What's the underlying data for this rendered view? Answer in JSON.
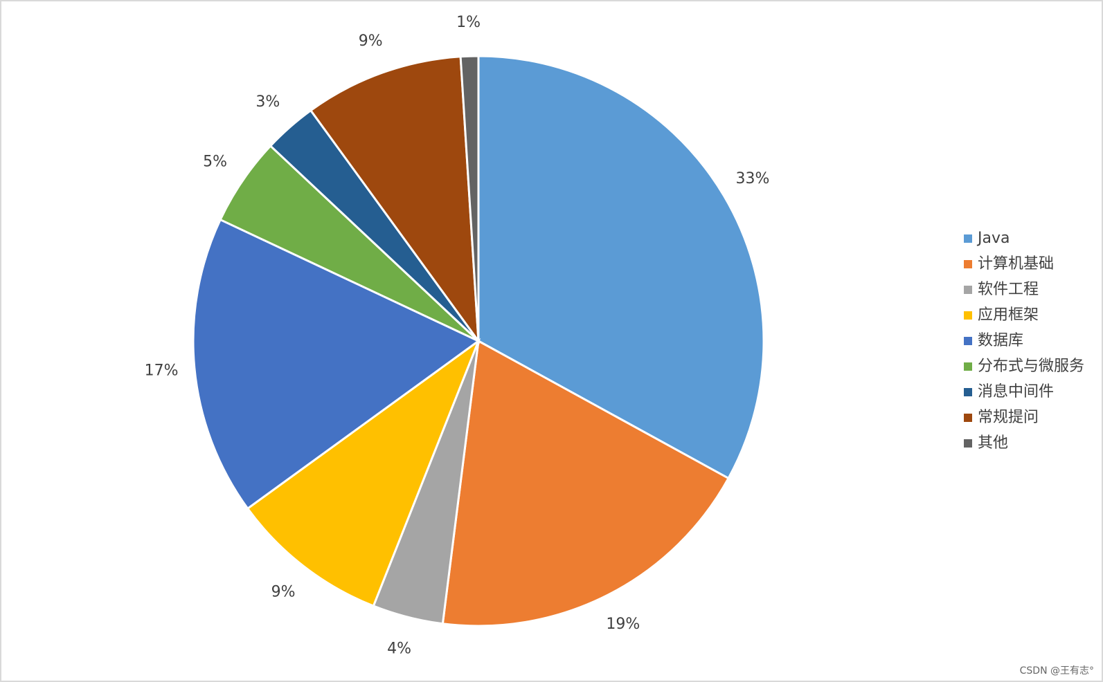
{
  "chart_data": {
    "type": "pie",
    "categories": [
      "Java",
      "计算机基础",
      "软件工程",
      "应用框架",
      "数据库",
      "分布式与微服务",
      "消息中间件",
      "常规提问",
      "其他"
    ],
    "values": [
      33,
      19,
      4,
      9,
      17,
      5,
      3,
      9,
      1
    ],
    "value_labels": [
      "33%",
      "19%",
      "4%",
      "9%",
      "17%",
      "5%",
      "3%",
      "9%",
      "1%"
    ],
    "colors": [
      "#5b9bd5",
      "#ed7d31",
      "#a5a5a5",
      "#ffc000",
      "#4472c4",
      "#70ad47",
      "#255e91",
      "#9e480e",
      "#636363"
    ],
    "legend": "right",
    "watermark": "CSDN @王有志°"
  }
}
